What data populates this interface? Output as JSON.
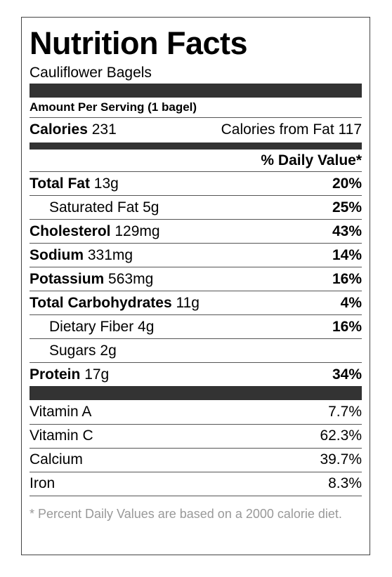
{
  "title": "Nutrition Facts",
  "recipe_name": "Cauliflower Bagels",
  "serving": "Amount Per Serving (1 bagel)",
  "calories": {
    "label": "Calories",
    "value": "231",
    "from_fat": "Calories from Fat 117"
  },
  "daily_value_header": "% Daily Value*",
  "nutrients": [
    {
      "label": "Total Fat",
      "amount": "13g",
      "dv": "20%",
      "indent": false
    },
    {
      "label": "Saturated Fat",
      "amount": "5g",
      "dv": "25%",
      "indent": true
    },
    {
      "label": "Cholesterol",
      "amount": "129mg",
      "dv": "43%",
      "indent": false
    },
    {
      "label": "Sodium",
      "amount": "331mg",
      "dv": "14%",
      "indent": false
    },
    {
      "label": "Potassium",
      "amount": "563mg",
      "dv": "16%",
      "indent": false
    },
    {
      "label": "Total Carbohydrates",
      "amount": "11g",
      "dv": "4%",
      "indent": false
    },
    {
      "label": "Dietary Fiber",
      "amount": "4g",
      "dv": "16%",
      "indent": true
    },
    {
      "label": "Sugars",
      "amount": "2g",
      "dv": "",
      "indent": true
    },
    {
      "label": "Protein",
      "amount": "17g",
      "dv": "34%",
      "indent": false
    }
  ],
  "vitamins": [
    {
      "label": "Vitamin A",
      "value": "7.7%"
    },
    {
      "label": "Vitamin C",
      "value": "62.3%"
    },
    {
      "label": "Calcium",
      "value": "39.7%"
    },
    {
      "label": "Iron",
      "value": "8.3%"
    }
  ],
  "footnote": "* Percent Daily Values are based on a 2000 calorie diet."
}
